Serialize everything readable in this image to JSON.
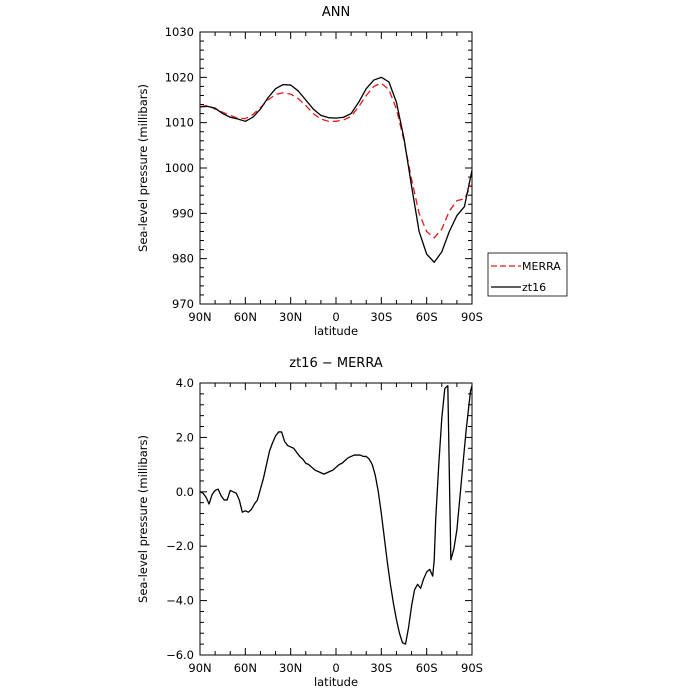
{
  "chart_data": [
    {
      "type": "line",
      "title": "ANN",
      "xlabel": "latitude",
      "ylabel": "Sea-level pressure (millibars)",
      "xlim": [
        90,
        -90
      ],
      "ylim": [
        970,
        1030
      ],
      "x_ticks": [
        90,
        60,
        30,
        0,
        -30,
        -60,
        -90
      ],
      "x_tick_labels": [
        "90N",
        "60N",
        "30N",
        "0",
        "30S",
        "60S",
        "90S"
      ],
      "y_ticks": [
        970,
        980,
        990,
        1000,
        1010,
        1020,
        1030
      ],
      "y_tick_labels": [
        "970",
        "980",
        "990",
        "1000",
        "1010",
        "1020",
        "1030"
      ],
      "legend_placement": "right",
      "series": [
        {
          "name": "MERRA",
          "color": "#e41a1c",
          "dash": "dashed",
          "x": [
            90,
            85,
            80,
            75,
            70,
            65,
            60,
            55,
            50,
            45,
            40,
            35,
            30,
            25,
            20,
            15,
            10,
            5,
            0,
            -5,
            -10,
            -15,
            -20,
            -25,
            -30,
            -35,
            -40,
            -45,
            -50,
            -55,
            -60,
            -65,
            -70,
            -75,
            -80,
            -85,
            -90
          ],
          "y": [
            1013.5,
            1013.8,
            1013.0,
            1012.3,
            1011.6,
            1011.0,
            1010.9,
            1011.8,
            1013.3,
            1015.0,
            1016.2,
            1016.6,
            1016.3,
            1015.3,
            1013.8,
            1012.0,
            1010.8,
            1010.3,
            1010.3,
            1010.6,
            1011.4,
            1013.5,
            1016.0,
            1018.0,
            1018.7,
            1017.3,
            1013.0,
            1006.0,
            997.5,
            990.0,
            986.0,
            984.6,
            986.5,
            990.5,
            992.8,
            993.2,
            996.5
          ]
        },
        {
          "name": "zt16",
          "color": "#000000",
          "dash": "solid",
          "x": [
            90,
            85,
            80,
            75,
            70,
            65,
            60,
            55,
            50,
            45,
            40,
            35,
            30,
            25,
            20,
            15,
            10,
            5,
            0,
            -5,
            -10,
            -15,
            -20,
            -25,
            -30,
            -35,
            -40,
            -45,
            -50,
            -55,
            -60,
            -65,
            -70,
            -75,
            -80,
            -85,
            -90
          ],
          "y": [
            1013.5,
            1013.6,
            1013.2,
            1012.0,
            1011.2,
            1010.8,
            1010.3,
            1011.2,
            1013.0,
            1015.5,
            1017.5,
            1018.4,
            1018.3,
            1017.0,
            1015.0,
            1013.0,
            1011.6,
            1011.1,
            1011.0,
            1011.2,
            1012.0,
            1014.5,
            1017.5,
            1019.4,
            1020.0,
            1019.0,
            1014.5,
            1006.5,
            996.0,
            986.0,
            981.0,
            979.2,
            981.5,
            986.0,
            989.5,
            991.5,
            999.5
          ]
        }
      ]
    },
    {
      "type": "line",
      "title": "zt16 − MERRA",
      "xlabel": "latitude",
      "ylabel": "Sea-level pressure (millibars)",
      "xlim": [
        90,
        -90
      ],
      "ylim": [
        -6.0,
        4.0
      ],
      "x_ticks": [
        90,
        60,
        30,
        0,
        -30,
        -60,
        -90
      ],
      "x_tick_labels": [
        "90N",
        "60N",
        "30N",
        "0",
        "30S",
        "60S",
        "90S"
      ],
      "y_ticks": [
        -6,
        -4,
        -2,
        0,
        2,
        4
      ],
      "y_tick_labels": [
        "−6.0",
        "−4.0",
        "−2.0",
        "0.0",
        "2.0",
        "4.0"
      ],
      "series": [
        {
          "color": "#000000",
          "dash": "solid",
          "x": [
            90,
            88,
            86,
            84,
            82,
            80,
            78,
            76,
            74,
            72,
            70,
            68,
            66,
            64,
            62,
            60,
            58,
            56,
            54,
            52,
            50,
            48,
            46,
            44,
            42,
            40,
            38,
            36,
            34,
            32,
            30,
            28,
            26,
            24,
            22,
            20,
            18,
            16,
            14,
            12,
            10,
            8,
            6,
            4,
            2,
            0,
            -2,
            -4,
            -6,
            -8,
            -10,
            -12,
            -14,
            -16,
            -18,
            -20,
            -22,
            -24,
            -26,
            -28,
            -30,
            -32,
            -34,
            -36,
            -38,
            -40,
            -42,
            -44,
            -46,
            -48,
            -50,
            -52,
            -54,
            -56,
            -58,
            -60,
            -62,
            -64,
            -65,
            -66,
            -68,
            -70,
            -72,
            -74,
            -76,
            -78,
            -80,
            -82,
            -84,
            -86,
            -88,
            -89,
            -90
          ],
          "y": [
            0.0,
            -0.05,
            -0.2,
            -0.45,
            -0.1,
            0.05,
            0.1,
            -0.15,
            -0.3,
            -0.3,
            0.05,
            0.0,
            -0.05,
            -0.3,
            -0.75,
            -0.7,
            -0.75,
            -0.65,
            -0.45,
            -0.3,
            0.1,
            0.5,
            1.0,
            1.5,
            1.8,
            2.05,
            2.2,
            2.2,
            1.85,
            1.7,
            1.65,
            1.6,
            1.45,
            1.3,
            1.2,
            1.05,
            1.0,
            0.9,
            0.8,
            0.75,
            0.7,
            0.65,
            0.7,
            0.75,
            0.8,
            0.9,
            1.0,
            1.05,
            1.15,
            1.25,
            1.3,
            1.35,
            1.35,
            1.35,
            1.3,
            1.3,
            1.2,
            1.0,
            0.6,
            0.0,
            -0.8,
            -1.7,
            -2.6,
            -3.4,
            -4.1,
            -4.7,
            -5.2,
            -5.55,
            -5.6,
            -5.0,
            -4.2,
            -3.6,
            -3.4,
            -3.55,
            -3.2,
            -2.95,
            -2.85,
            -3.1,
            -2.5,
            -1.0,
            1.0,
            2.7,
            3.8,
            3.9,
            -2.5,
            -2.1,
            -1.4,
            -0.2,
            1.0,
            2.2,
            3.2,
            3.7,
            3.9
          ]
        }
      ]
    }
  ]
}
